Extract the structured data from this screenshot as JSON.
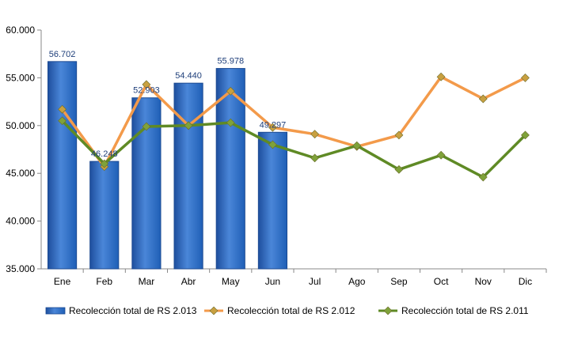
{
  "chart_data": {
    "type": "bar",
    "categories": [
      "Ene",
      "Feb",
      "Mar",
      "Abr",
      "May",
      "Jun",
      "Jul",
      "Ago",
      "Sep",
      "Oct",
      "Nov",
      "Dic"
    ],
    "ylim": [
      35000,
      60000
    ],
    "y_ticks": [
      {
        "value": 35000,
        "label": "35.000"
      },
      {
        "value": 40000,
        "label": "40.000"
      },
      {
        "value": 45000,
        "label": "45.000"
      },
      {
        "value": 50000,
        "label": "50.000"
      },
      {
        "value": 55000,
        "label": "55.000"
      },
      {
        "value": 60000,
        "label": "60.000"
      }
    ],
    "grid": false,
    "legend_position": "bottom",
    "series": [
      {
        "name": "Recolección total de RS 2.013",
        "kind": "bar",
        "color": "#3a73c8",
        "values": [
          56702,
          46248,
          52903,
          54440,
          55978,
          49297,
          null,
          null,
          null,
          null,
          null,
          null
        ],
        "data_labels": [
          "56.702",
          "46.248",
          "52.903",
          "54.440",
          "55.978",
          "49.297",
          null,
          null,
          null,
          null,
          null,
          null
        ]
      },
      {
        "name": "Recolección total de RS 2.012",
        "kind": "line",
        "color": "#f39a4a",
        "marker_color": "#c8a040",
        "values": [
          51700,
          45700,
          54300,
          50000,
          53600,
          49800,
          49100,
          47800,
          49000,
          55100,
          52800,
          55000
        ]
      },
      {
        "name": "Recolección total de RS 2.011",
        "kind": "line",
        "color": "#5f8a25",
        "marker_color": "#7fa23a",
        "values": [
          50500,
          46000,
          49900,
          50000,
          50300,
          48000,
          46600,
          47900,
          45400,
          46900,
          44600,
          49000
        ]
      }
    ]
  }
}
